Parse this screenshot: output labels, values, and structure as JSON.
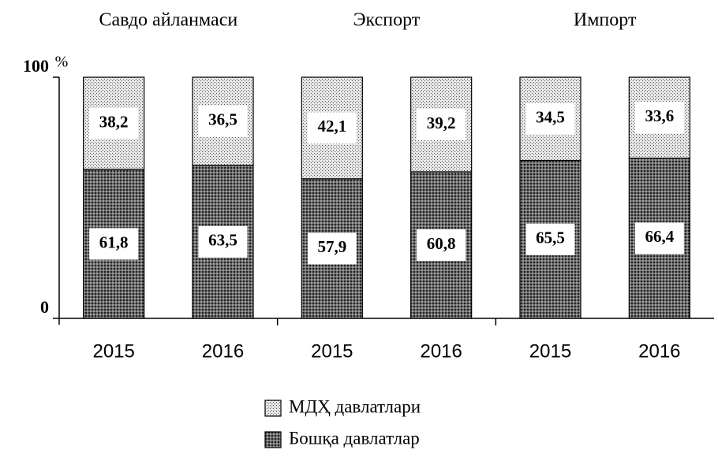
{
  "chart_data": {
    "type": "stacked_bar",
    "y_label": "%",
    "groups": [
      "Савдо айланмаси",
      "Экспорт",
      "Импорт"
    ],
    "categories": [
      "2015",
      "2016",
      "2015",
      "2016",
      "2015",
      "2016"
    ],
    "series": [
      {
        "name": "МДҲ давлатлари",
        "color": "#e6e6e6",
        "values": [
          38.2,
          36.5,
          42.1,
          39.2,
          34.5,
          33.6
        ],
        "value_labels": [
          "38,2",
          "36,5",
          "42,1",
          "39,2",
          "34,5",
          "33,6"
        ]
      },
      {
        "name": "Бошқа давлатлар",
        "color": "#6e6e6e",
        "values": [
          61.8,
          63.5,
          57.9,
          60.8,
          65.5,
          66.4
        ],
        "value_labels": [
          "61,8",
          "63,5",
          "57,9",
          "60,8",
          "65,5",
          "66,4"
        ]
      }
    ],
    "ylim": [
      0,
      100
    ],
    "yticks": [
      0,
      100
    ],
    "legend": "bottom"
  }
}
